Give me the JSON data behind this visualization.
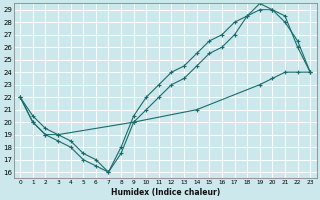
{
  "xlabel": "Humidex (Indice chaleur)",
  "bg_color": "#cce8ec",
  "grid_color": "#ffffff",
  "line_color": "#1a6b6b",
  "xlim": [
    -0.5,
    23.5
  ],
  "ylim": [
    15.5,
    29.5
  ],
  "xticks": [
    0,
    1,
    2,
    3,
    4,
    5,
    6,
    7,
    8,
    9,
    10,
    11,
    12,
    13,
    14,
    15,
    16,
    17,
    18,
    19,
    20,
    21,
    22,
    23
  ],
  "yticks": [
    16,
    17,
    18,
    19,
    20,
    21,
    22,
    23,
    24,
    25,
    26,
    27,
    28,
    29
  ],
  "line1_x": [
    0,
    1,
    2,
    3,
    4,
    5,
    6,
    7,
    8,
    9,
    10,
    11,
    12,
    13,
    14,
    15,
    16,
    17,
    18,
    19,
    20,
    21,
    22,
    23
  ],
  "line1_y": [
    22,
    20,
    19,
    18.5,
    18,
    17,
    16.5,
    16,
    17.5,
    20,
    21,
    22,
    23,
    23.5,
    24.5,
    25.5,
    26,
    27,
    28.5,
    29,
    29,
    28.5,
    26,
    24
  ],
  "line2_x": [
    0,
    1,
    2,
    3,
    4,
    5,
    6,
    7,
    8,
    9,
    10,
    11,
    12,
    13,
    14,
    15,
    16,
    17,
    18,
    19,
    20,
    21,
    22,
    23
  ],
  "line2_y": [
    22,
    20.5,
    19.5,
    19,
    18.5,
    17.5,
    17,
    16,
    18,
    20.5,
    22,
    23,
    24,
    24.5,
    25.5,
    26.5,
    27,
    28,
    28.5,
    29.5,
    29,
    28,
    26.5,
    24
  ],
  "line3_x": [
    0,
    1,
    2,
    3,
    9,
    14,
    19,
    20,
    21,
    22,
    23
  ],
  "line3_y": [
    22,
    20,
    19,
    19,
    20,
    21,
    23,
    23.5,
    24,
    24,
    24
  ]
}
